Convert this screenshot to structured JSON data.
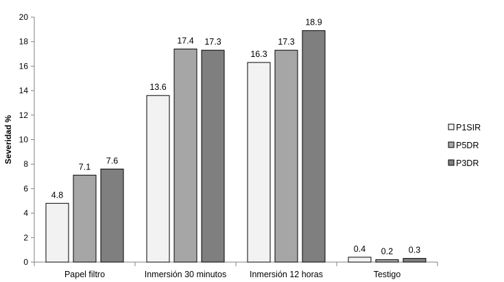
{
  "chart_data": {
    "type": "bar",
    "title": "",
    "xlabel": "",
    "ylabel": "Severidad %",
    "ylim": [
      0,
      20
    ],
    "yticks": [
      0,
      2,
      4,
      6,
      8,
      10,
      12,
      14,
      16,
      18,
      20
    ],
    "grid": false,
    "legend_position": "right",
    "categories": [
      "Papel filtro",
      "Inmersión 30 minutos",
      "Inmersión 12 horas",
      "Testigo"
    ],
    "series": [
      {
        "name": "P1SIR",
        "color": "#f2f2f2",
        "values": [
          4.8,
          13.6,
          16.3,
          0.4
        ],
        "labels": [
          "4.8",
          "13.6",
          "16.3",
          "0.4"
        ]
      },
      {
        "name": "P5DR",
        "color": "#a6a6a6",
        "values": [
          7.1,
          17.4,
          17.3,
          0.2
        ],
        "labels": [
          "7.1",
          "17.4",
          "17.3",
          "0.2"
        ]
      },
      {
        "name": "P3DR",
        "color": "#7f7f7f",
        "values": [
          7.6,
          17.3,
          18.9,
          0.3
        ],
        "labels": [
          "7.6",
          "17.3",
          "18.9",
          "0.3"
        ]
      }
    ]
  }
}
